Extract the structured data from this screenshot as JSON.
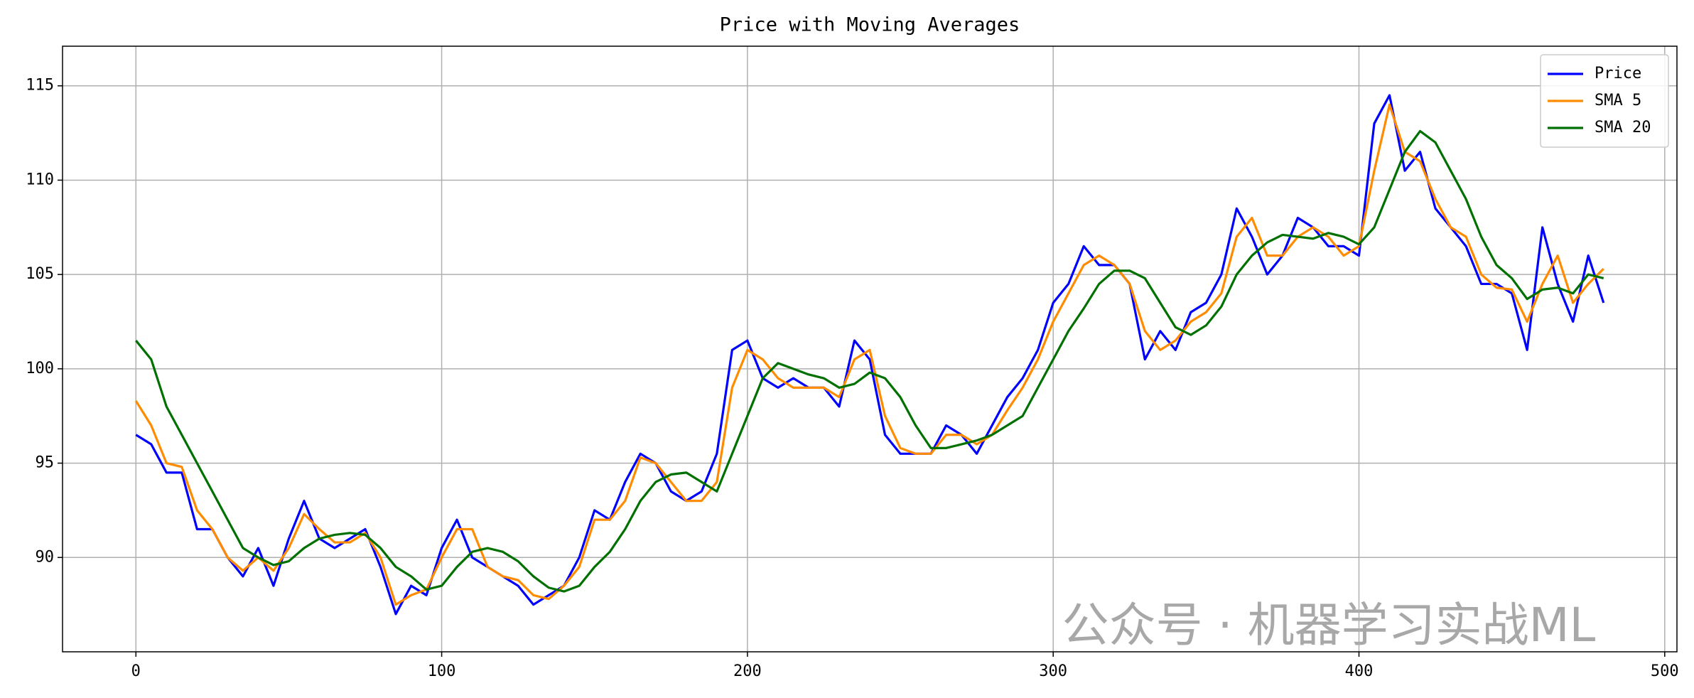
{
  "chart_data": {
    "type": "line",
    "title": "Price with Moving Averages",
    "x": [
      0,
      5,
      10,
      15,
      20,
      25,
      30,
      35,
      40,
      45,
      50,
      55,
      60,
      65,
      70,
      75,
      80,
      85,
      90,
      95,
      100,
      105,
      110,
      115,
      120,
      125,
      130,
      135,
      140,
      145,
      150,
      155,
      160,
      165,
      170,
      175,
      180,
      185,
      190,
      195,
      200,
      205,
      210,
      215,
      220,
      225,
      230,
      235,
      240,
      245,
      250,
      255,
      260,
      265,
      270,
      275,
      280,
      285,
      290,
      295,
      300,
      305,
      310,
      315,
      320,
      325,
      330,
      335,
      340,
      345,
      350,
      355,
      360,
      365,
      370,
      375,
      380,
      385,
      390,
      395,
      400,
      405,
      410,
      415,
      420,
      425,
      430,
      435,
      440,
      445,
      450,
      455,
      460,
      465,
      470,
      475,
      480
    ],
    "series": [
      {
        "name": "Price",
        "color": "#0000ff",
        "values": [
          96.5,
          96.0,
          94.5,
          94.5,
          91.5,
          91.5,
          90.0,
          89.0,
          90.5,
          88.5,
          91.0,
          93.0,
          91.0,
          90.5,
          91.0,
          91.5,
          89.5,
          87.0,
          88.5,
          88.0,
          90.5,
          92.0,
          90.0,
          89.5,
          89.0,
          88.5,
          87.5,
          88.0,
          88.5,
          90.0,
          92.5,
          92.0,
          94.0,
          95.5,
          95.0,
          93.5,
          93.0,
          93.5,
          95.5,
          101.0,
          101.5,
          99.5,
          99.0,
          99.5,
          99.0,
          99.0,
          98.0,
          101.5,
          100.5,
          96.5,
          95.5,
          95.5,
          95.5,
          97.0,
          96.5,
          95.5,
          97.0,
          98.5,
          99.5,
          101.0,
          103.5,
          104.5,
          106.5,
          105.5,
          105.5,
          104.5,
          100.5,
          102.0,
          101.0,
          103.0,
          103.5,
          105.0,
          108.5,
          107.0,
          105.0,
          106.0,
          108.0,
          107.5,
          106.5,
          106.5,
          106.0,
          113.0,
          114.5,
          110.5,
          111.5,
          108.5,
          107.5,
          106.5,
          104.5,
          104.5,
          104.0,
          101.0,
          107.5,
          104.5,
          102.5,
          106.0,
          103.5
        ]
      },
      {
        "name": "SMA 5",
        "color": "#ff8c00",
        "values": [
          98.3,
          97.0,
          95.0,
          94.8,
          92.5,
          91.5,
          90.0,
          89.3,
          90.0,
          89.3,
          90.5,
          92.3,
          91.5,
          90.8,
          90.8,
          91.3,
          90.0,
          87.5,
          88.0,
          88.3,
          90.0,
          91.5,
          91.5,
          89.5,
          89.0,
          88.8,
          88.0,
          87.8,
          88.5,
          89.5,
          92.0,
          92.0,
          93.0,
          95.3,
          95.0,
          94.0,
          93.0,
          93.0,
          94.0,
          99.0,
          101.0,
          100.5,
          99.5,
          99.0,
          99.0,
          99.0,
          98.5,
          100.5,
          101.0,
          97.5,
          95.8,
          95.5,
          95.5,
          96.5,
          96.5,
          96.0,
          96.5,
          97.8,
          99.0,
          100.5,
          102.5,
          104.0,
          105.5,
          106.0,
          105.5,
          104.5,
          102.0,
          101.0,
          101.5,
          102.5,
          103.0,
          104.0,
          107.0,
          108.0,
          106.0,
          106.0,
          107.0,
          107.5,
          107.0,
          106.0,
          106.5,
          110.5,
          114.0,
          111.5,
          111.0,
          109.0,
          107.5,
          107.0,
          105.0,
          104.3,
          104.2,
          102.5,
          104.5,
          106.0,
          103.5,
          104.5,
          105.3
        ]
      },
      {
        "name": "SMA 20",
        "color": "#007000",
        "values": [
          101.5,
          100.5,
          98.0,
          96.5,
          95.0,
          93.5,
          92.0,
          90.5,
          90.0,
          89.6,
          89.8,
          90.5,
          91.0,
          91.2,
          91.3,
          91.2,
          90.5,
          89.5,
          89.0,
          88.3,
          88.5,
          89.5,
          90.3,
          90.5,
          90.3,
          89.8,
          89.0,
          88.4,
          88.2,
          88.5,
          89.5,
          90.3,
          91.5,
          93.0,
          94.0,
          94.4,
          94.5,
          94.0,
          93.5,
          95.5,
          97.5,
          99.5,
          100.3,
          100.0,
          99.7,
          99.5,
          99.0,
          99.2,
          99.8,
          99.5,
          98.5,
          97.0,
          95.8,
          95.8,
          96.0,
          96.2,
          96.5,
          97.0,
          97.5,
          99.0,
          100.5,
          102.0,
          103.2,
          104.5,
          105.2,
          105.2,
          104.8,
          103.5,
          102.2,
          101.8,
          102.3,
          103.3,
          105.0,
          106.0,
          106.7,
          107.1,
          107.0,
          106.9,
          107.2,
          107.0,
          106.6,
          107.5,
          109.5,
          111.5,
          112.6,
          112.0,
          110.5,
          109.0,
          107.0,
          105.5,
          104.8,
          103.7,
          104.2,
          104.3,
          104.0,
          105.0,
          104.8
        ]
      }
    ],
    "xlim": [
      -24,
      504
    ],
    "xticks": [
      0,
      100,
      200,
      300,
      400,
      500
    ],
    "ylim": [
      85,
      117.1
    ],
    "yticks": [
      90,
      95,
      100,
      105,
      110,
      115
    ],
    "grid": true,
    "legend": "upper right",
    "annotation": "公众号 · 机器学习实战ML"
  }
}
